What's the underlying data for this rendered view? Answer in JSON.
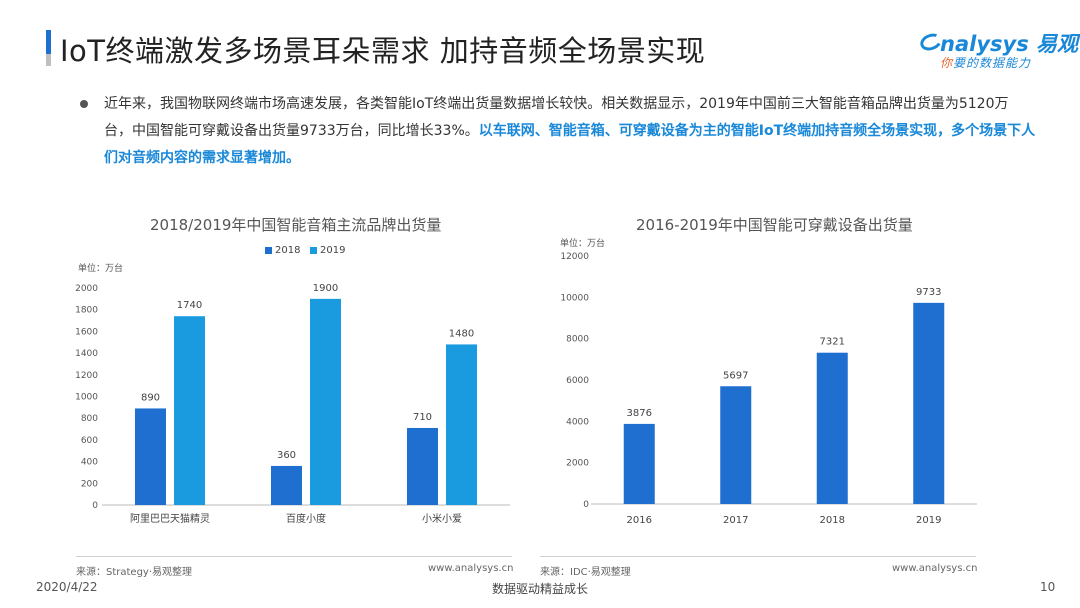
{
  "header": {
    "title": "IoT终端激发多场景耳朵需求 加持音频全场景实现",
    "logo_brand": "nalysys 易观",
    "logo_slogan_a": "你",
    "logo_slogan_b": "要的数据能力",
    "colors": {
      "accent": "#1f6fd1",
      "brand": "#1a88d8"
    }
  },
  "bullet": {
    "text_plain": "近年来，我国物联网终端市场高速发展，各类智能IoT终端出货量数据增长较快。相关数据显示，2019年中国前三大智能音箱品牌出货量为5120万台，中国智能可穿戴设备出货量9733万台，同比增长33%。",
    "text_highlight": "以车联网、智能音箱、可穿戴设备为主的智能IoT终端加持音频全场景实现，多个场景下人们对音频内容的需求显著增加。"
  },
  "chart_data": [
    {
      "type": "bar",
      "title": "2018/2019年中国智能音箱主流品牌出货量",
      "unit": "单位：万台",
      "categories": [
        "阿里巴巴天猫精灵",
        "百度小度",
        "小米小爱"
      ],
      "series": [
        {
          "name": "2018",
          "values": [
            890,
            360,
            710
          ],
          "color": "#1f6fd1"
        },
        {
          "name": "2019",
          "values": [
            1740,
            1900,
            1480
          ],
          "color": "#1a9be0"
        }
      ],
      "ylim": [
        0,
        2000
      ],
      "yticks": [
        0,
        200,
        400,
        600,
        800,
        1000,
        1200,
        1400,
        1600,
        1800,
        2000
      ],
      "legend": "top",
      "grid": false,
      "source": "来源：Strategy·易观整理",
      "site": "www.analysys.cn"
    },
    {
      "type": "bar",
      "title": "2016-2019年中国智能可穿戴设备出货量",
      "unit": "单位：万台",
      "categories": [
        "2016",
        "2017",
        "2018",
        "2019"
      ],
      "values": [
        3876,
        5697,
        7321,
        9733
      ],
      "color": "#1f6fd1",
      "ylim": [
        0,
        12000
      ],
      "yticks": [
        0,
        2000,
        4000,
        6000,
        8000,
        10000,
        12000
      ],
      "grid": false,
      "source": "来源：IDC·易观整理",
      "site": "www.analysys.cn"
    }
  ],
  "footer": {
    "date": "2020/4/22",
    "center": "数据驱动精益成长",
    "page": "10"
  }
}
